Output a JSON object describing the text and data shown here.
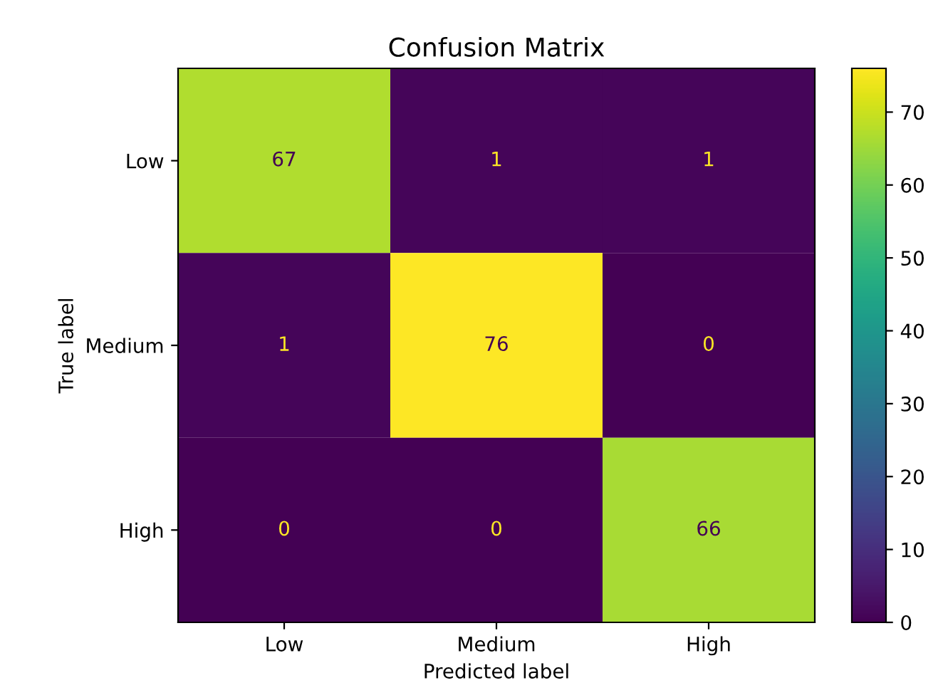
{
  "chart_data": {
    "type": "heatmap",
    "title": "Confusion Matrix",
    "xlabel": "Predicted label",
    "ylabel": "True label",
    "categories": [
      "Low",
      "Medium",
      "High"
    ],
    "y_categories": [
      "Low",
      "Medium",
      "High"
    ],
    "cells": [
      [
        67,
        1,
        1
      ],
      [
        1,
        76,
        0
      ],
      [
        0,
        0,
        66
      ]
    ],
    "data_labels": true,
    "clim": [
      0,
      76
    ],
    "cticks": [
      0,
      10,
      20,
      30,
      40,
      50,
      60,
      70
    ],
    "grid": false
  }
}
